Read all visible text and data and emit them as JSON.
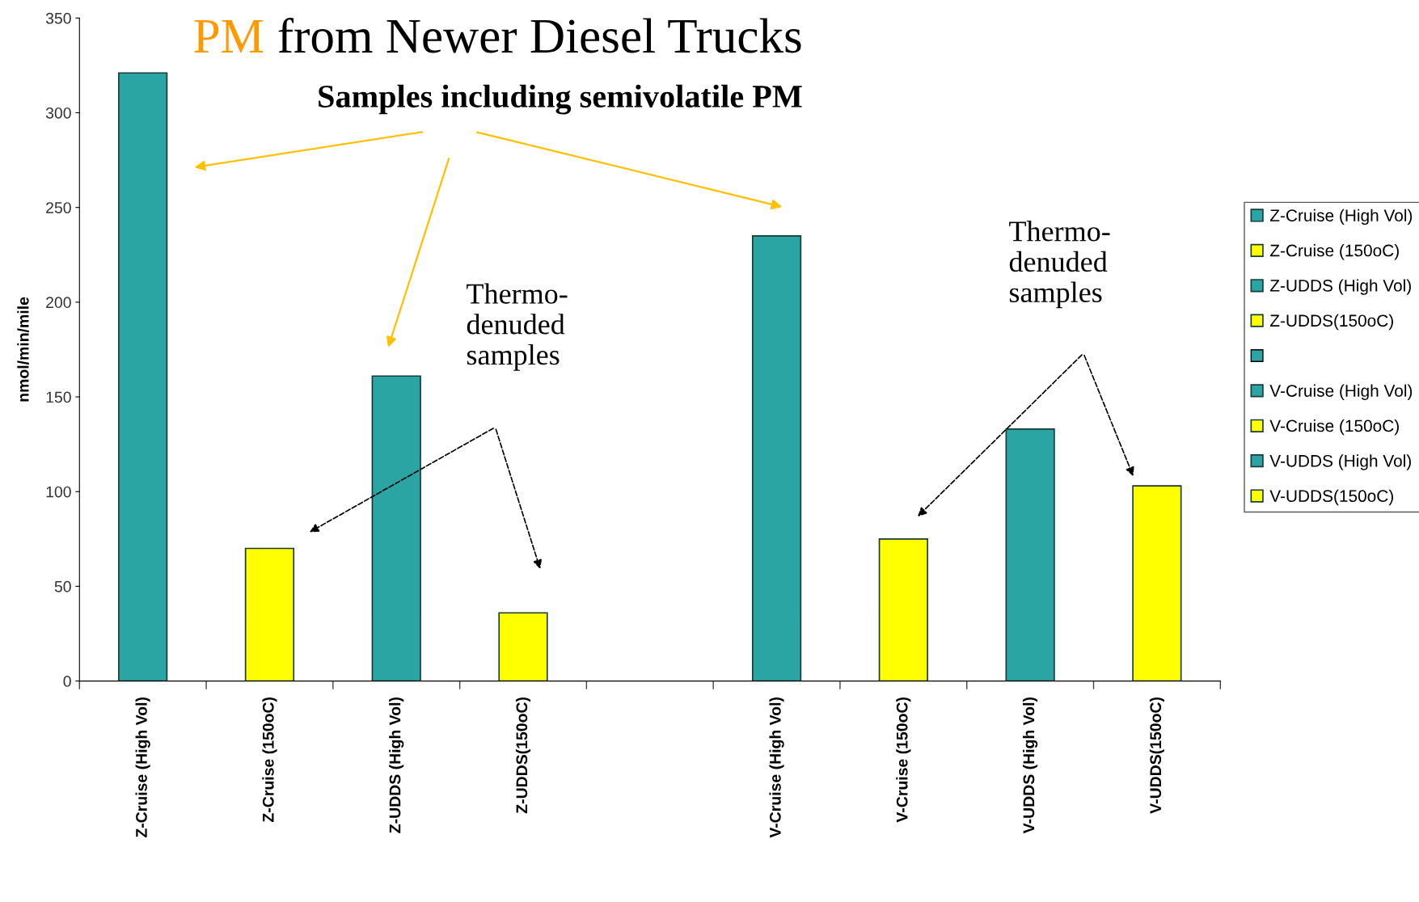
{
  "chart_data": {
    "type": "bar",
    "title": "PM from Newer Diesel Trucks",
    "ylabel": "nmol/min/mile",
    "categories": [
      "Z-Cruise (High Vol)",
      "Z-Cruise (150oC)",
      "Z-UDDS (High Vol)",
      "Z-UDDS(150oC)",
      null,
      "V-Cruise (High Vol)",
      "V-Cruise (150oC)",
      "V-UDDS (High Vol)",
      "V-UDDS(150oC)"
    ],
    "series": [
      {
        "name": "Z-Cruise (High Vol)",
        "color": "#2aa5a3",
        "values": [
          321,
          null,
          null,
          null,
          null,
          null,
          null,
          null,
          null
        ]
      },
      {
        "name": "Z-Cruise (150oC)",
        "color": "#ffff00",
        "values": [
          null,
          70,
          null,
          null,
          null,
          null,
          null,
          null,
          null
        ]
      },
      {
        "name": "Z-UDDS (High Vol)",
        "color": "#2aa5a3",
        "values": [
          null,
          null,
          161,
          null,
          null,
          null,
          null,
          null,
          null
        ]
      },
      {
        "name": "Z-UDDS(150oC)",
        "color": "#ffff00",
        "values": [
          null,
          null,
          null,
          36,
          null,
          null,
          null,
          null,
          null
        ]
      },
      {
        "color": "#2aa5a3",
        "values": [
          null,
          null,
          null,
          null,
          null,
          null,
          null,
          null,
          null
        ]
      },
      {
        "name": "V-Cruise (High Vol)",
        "color": "#2aa5a3",
        "values": [
          null,
          null,
          null,
          null,
          null,
          235,
          null,
          null,
          null
        ]
      },
      {
        "name": "V-Cruise (150oC)",
        "color": "#ffff00",
        "values": [
          null,
          null,
          null,
          null,
          null,
          null,
          75,
          null,
          null
        ]
      },
      {
        "name": "V-UDDS (High Vol)",
        "color": "#2aa5a3",
        "values": [
          null,
          null,
          null,
          null,
          null,
          null,
          null,
          133,
          null
        ]
      },
      {
        "name": "V-UDDS(150oC)",
        "color": "#ffff00",
        "values": [
          null,
          null,
          null,
          null,
          null,
          null,
          null,
          null,
          103
        ]
      }
    ],
    "ylim": [
      0,
      350
    ],
    "yticks": [
      0,
      50,
      100,
      150,
      200,
      250,
      300,
      350
    ],
    "grid": false,
    "legend": "right",
    "annotations": [
      "Samples including semivolatile PM",
      "Thermo-\ndenuded\nsamples",
      "Thermo-\ndenuded\nsamples"
    ]
  }
}
